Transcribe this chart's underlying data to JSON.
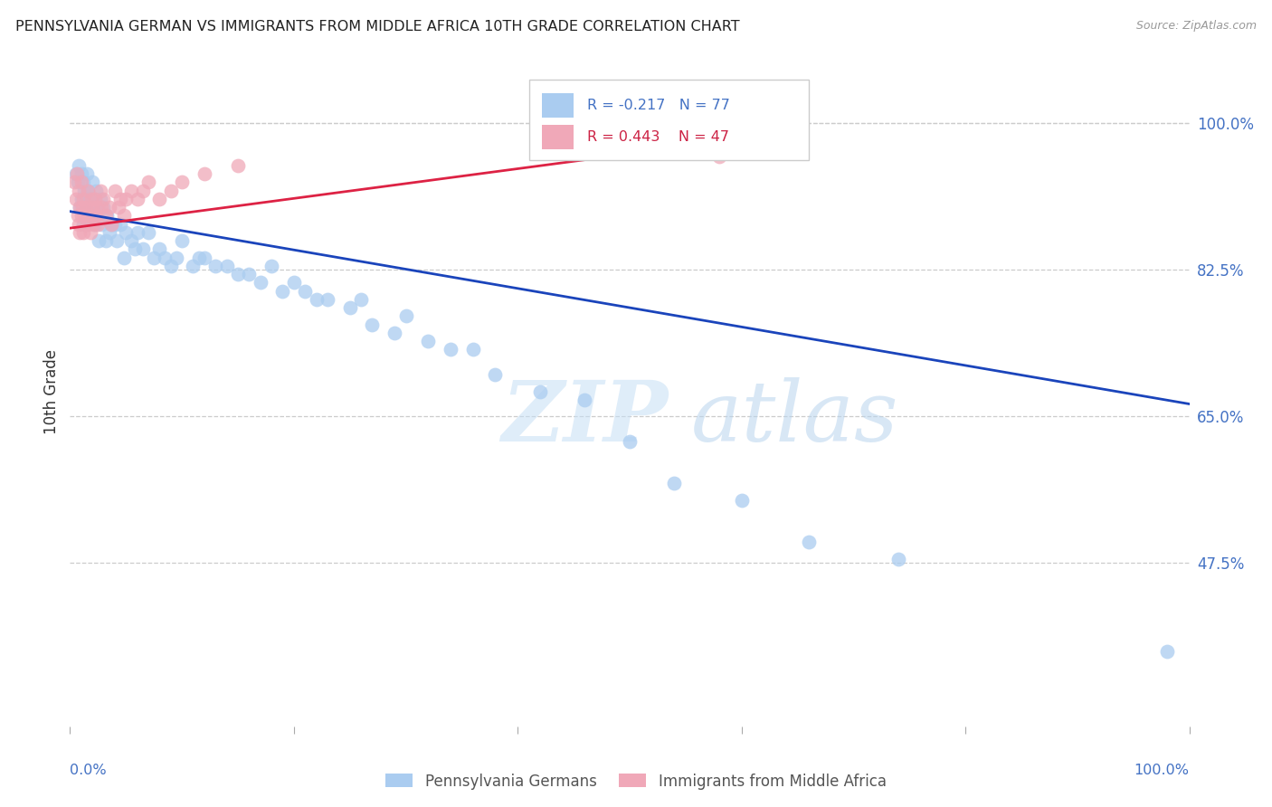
{
  "title": "PENNSYLVANIA GERMAN VS IMMIGRANTS FROM MIDDLE AFRICA 10TH GRADE CORRELATION CHART",
  "source": "Source: ZipAtlas.com",
  "ylabel": "10th Grade",
  "ytick_labels": [
    "100.0%",
    "82.5%",
    "65.0%",
    "47.5%"
  ],
  "ytick_values": [
    1.0,
    0.825,
    0.65,
    0.475
  ],
  "xlim": [
    0.0,
    1.0
  ],
  "ylim": [
    0.28,
    1.08
  ],
  "blue_R": "-0.217",
  "blue_N": "77",
  "pink_R": "0.443",
  "pink_N": "47",
  "legend_blue": "Pennsylvania Germans",
  "legend_pink": "Immigrants from Middle Africa",
  "blue_color": "#aaccf0",
  "pink_color": "#f0a8b8",
  "blue_line_color": "#1a44bb",
  "pink_line_color": "#dd2244",
  "watermark_zip": "ZIP",
  "watermark_atlas": "atlas",
  "blue_points_x": [
    0.005,
    0.007,
    0.008,
    0.009,
    0.01,
    0.01,
    0.011,
    0.012,
    0.012,
    0.013,
    0.014,
    0.015,
    0.015,
    0.016,
    0.017,
    0.018,
    0.019,
    0.02,
    0.021,
    0.022,
    0.023,
    0.025,
    0.026,
    0.027,
    0.028,
    0.03,
    0.032,
    0.033,
    0.035,
    0.037,
    0.04,
    0.042,
    0.045,
    0.048,
    0.05,
    0.055,
    0.058,
    0.06,
    0.065,
    0.07,
    0.075,
    0.08,
    0.085,
    0.09,
    0.095,
    0.1,
    0.11,
    0.115,
    0.12,
    0.13,
    0.14,
    0.15,
    0.16,
    0.17,
    0.18,
    0.19,
    0.2,
    0.21,
    0.22,
    0.23,
    0.25,
    0.26,
    0.27,
    0.29,
    0.3,
    0.32,
    0.34,
    0.36,
    0.38,
    0.42,
    0.46,
    0.5,
    0.54,
    0.6,
    0.66,
    0.74,
    0.98
  ],
  "blue_points_y": [
    0.94,
    0.93,
    0.95,
    0.9,
    0.94,
    0.91,
    0.9,
    0.93,
    0.88,
    0.92,
    0.91,
    0.94,
    0.88,
    0.92,
    0.9,
    0.91,
    0.89,
    0.93,
    0.91,
    0.88,
    0.92,
    0.9,
    0.86,
    0.91,
    0.88,
    0.9,
    0.86,
    0.89,
    0.87,
    0.88,
    0.88,
    0.86,
    0.88,
    0.84,
    0.87,
    0.86,
    0.85,
    0.87,
    0.85,
    0.87,
    0.84,
    0.85,
    0.84,
    0.83,
    0.84,
    0.86,
    0.83,
    0.84,
    0.84,
    0.83,
    0.83,
    0.82,
    0.82,
    0.81,
    0.83,
    0.8,
    0.81,
    0.8,
    0.79,
    0.79,
    0.78,
    0.79,
    0.76,
    0.75,
    0.77,
    0.74,
    0.73,
    0.73,
    0.7,
    0.68,
    0.67,
    0.62,
    0.57,
    0.55,
    0.5,
    0.48,
    0.37
  ],
  "pink_points_x": [
    0.004,
    0.005,
    0.006,
    0.007,
    0.008,
    0.008,
    0.009,
    0.009,
    0.01,
    0.01,
    0.011,
    0.012,
    0.012,
    0.013,
    0.014,
    0.015,
    0.016,
    0.017,
    0.018,
    0.019,
    0.02,
    0.021,
    0.022,
    0.023,
    0.024,
    0.025,
    0.027,
    0.028,
    0.03,
    0.032,
    0.035,
    0.037,
    0.04,
    0.043,
    0.045,
    0.048,
    0.05,
    0.055,
    0.06,
    0.065,
    0.07,
    0.08,
    0.09,
    0.1,
    0.12,
    0.15,
    0.58
  ],
  "pink_points_y": [
    0.93,
    0.91,
    0.94,
    0.89,
    0.92,
    0.88,
    0.9,
    0.87,
    0.93,
    0.89,
    0.9,
    0.91,
    0.87,
    0.89,
    0.9,
    0.88,
    0.92,
    0.89,
    0.87,
    0.91,
    0.9,
    0.88,
    0.91,
    0.89,
    0.9,
    0.88,
    0.92,
    0.9,
    0.91,
    0.89,
    0.9,
    0.88,
    0.92,
    0.9,
    0.91,
    0.89,
    0.91,
    0.92,
    0.91,
    0.92,
    0.93,
    0.91,
    0.92,
    0.93,
    0.94,
    0.95,
    0.96
  ],
  "blue_trendline_x": [
    0.0,
    1.0
  ],
  "blue_trendline_y": [
    0.895,
    0.665
  ],
  "pink_trendline_x": [
    0.0,
    0.62
  ],
  "pink_trendline_y": [
    0.875,
    0.985
  ]
}
